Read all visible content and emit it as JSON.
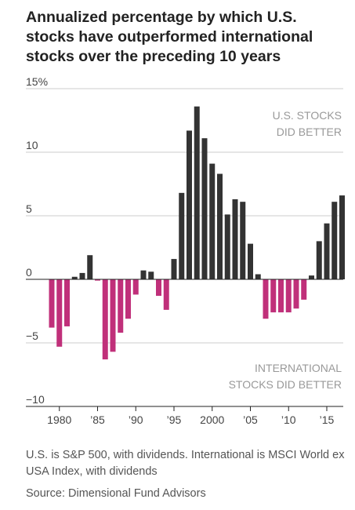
{
  "title": "Annualized percentage by which U.S. stocks have outperformed international stocks over the preceding 10 years",
  "notes": {
    "caption": "U.S. is S&P 500, with dividends. International is MSCI World ex USA Index, with dividends",
    "source": "Source: Dimensional Fund Advisors"
  },
  "colors": {
    "positive": "#333333",
    "negative": "#c0307a",
    "grid": "#cccccc",
    "zero_line": "#222222",
    "text": "#444444",
    "annotation": "#999999"
  },
  "chart_data": {
    "type": "bar",
    "title": "Annualized percentage by which U.S. stocks have outperformed international stocks over the preceding 10 years",
    "xlabel": "",
    "ylabel": "",
    "ylim": [
      -10,
      15
    ],
    "y_ticks": [
      {
        "value": 15,
        "label": "15%"
      },
      {
        "value": 10,
        "label": "10"
      },
      {
        "value": 5,
        "label": "5"
      },
      {
        "value": 0,
        "label": "0"
      },
      {
        "value": -5,
        "label": "−5"
      },
      {
        "value": -10,
        "label": "−10"
      }
    ],
    "x_ticks": [
      {
        "year": 1980,
        "label": "1980"
      },
      {
        "year": 1985,
        "label": "’85"
      },
      {
        "year": 1990,
        "label": "’90"
      },
      {
        "year": 1995,
        "label": "’95"
      },
      {
        "year": 2000,
        "label": "2000"
      },
      {
        "year": 2005,
        "label": "’05"
      },
      {
        "year": 2010,
        "label": "’10"
      },
      {
        "year": 2015,
        "label": "’15"
      }
    ],
    "grid": true,
    "years": [
      1979,
      1980,
      1981,
      1982,
      1983,
      1984,
      1985,
      1986,
      1987,
      1988,
      1989,
      1990,
      1991,
      1992,
      1993,
      1994,
      1995,
      1996,
      1997,
      1998,
      1999,
      2000,
      2001,
      2002,
      2003,
      2004,
      2005,
      2006,
      2007,
      2008,
      2009,
      2010,
      2011,
      2012,
      2013,
      2014,
      2015,
      2016,
      2017
    ],
    "values": [
      -3.8,
      -5.3,
      -3.7,
      0.2,
      0.5,
      1.9,
      -0.1,
      -6.3,
      -5.7,
      -4.2,
      -3.1,
      -1.2,
      0.7,
      0.6,
      -1.3,
      -2.4,
      1.6,
      6.8,
      11.7,
      13.6,
      11.1,
      9.1,
      8.3,
      5.1,
      6.3,
      6.1,
      2.8,
      0.4,
      -3.1,
      -2.6,
      -2.6,
      -2.6,
      -2.3,
      -1.6,
      0.3,
      3.0,
      4.4,
      6.1,
      6.6
    ],
    "annotations": [
      {
        "lines": [
          "U.S. STOCKS",
          "DID BETTER"
        ],
        "position": "top-right"
      },
      {
        "lines": [
          "INTERNATIONAL",
          "STOCKS DID BETTER"
        ],
        "position": "bottom-right"
      }
    ]
  }
}
